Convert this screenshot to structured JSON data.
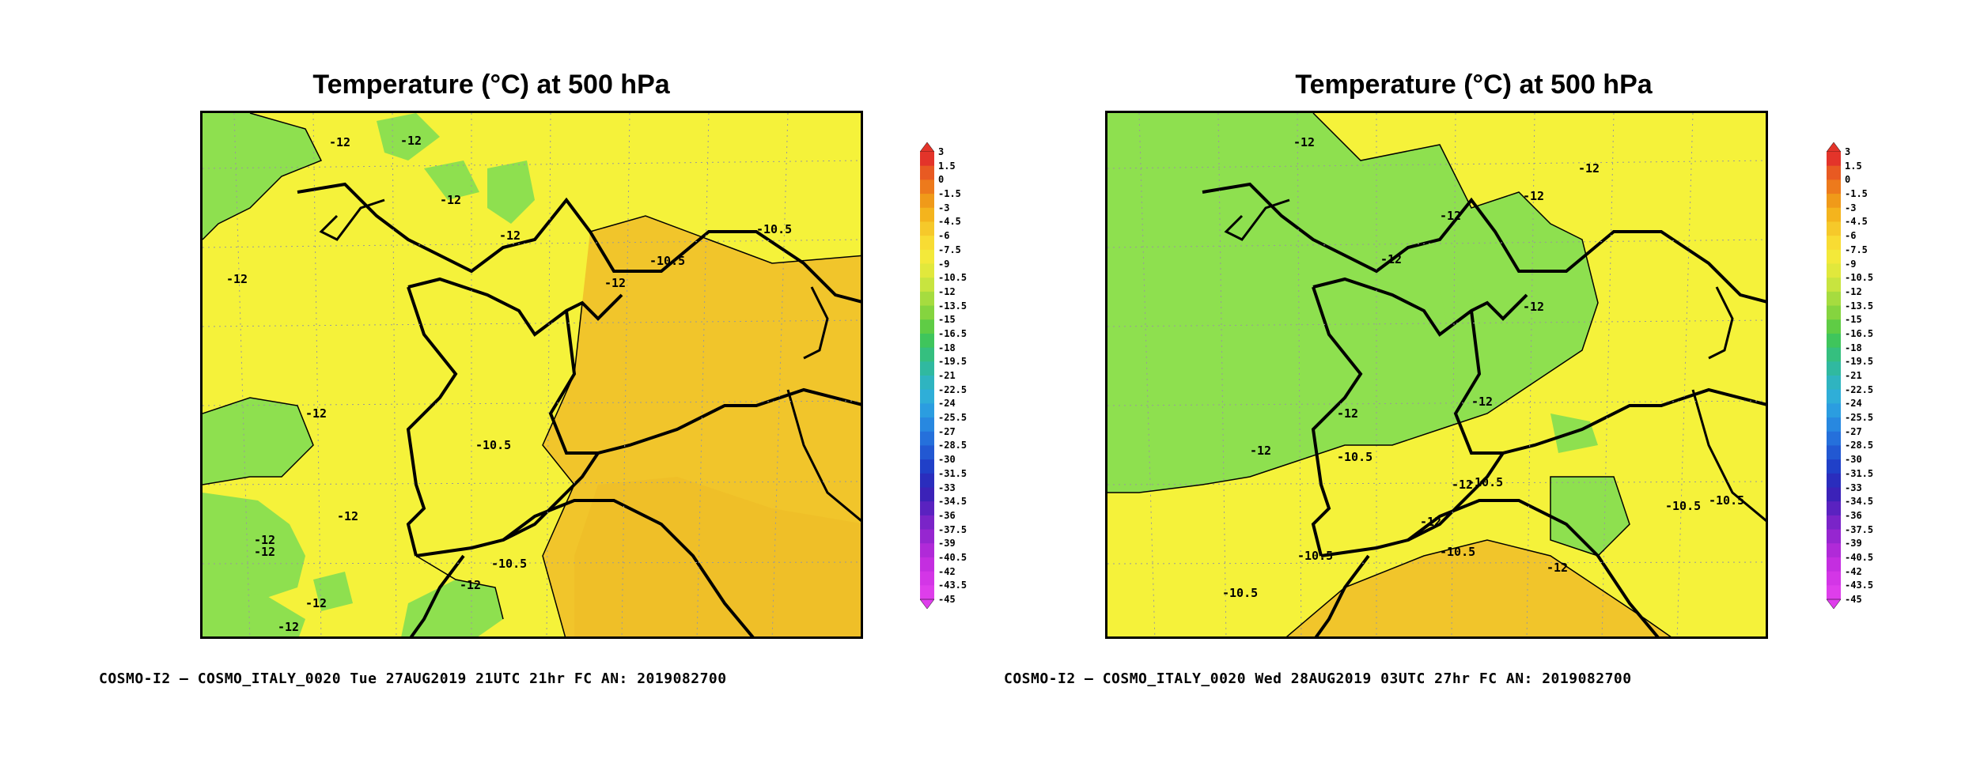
{
  "panels": [
    {
      "title": "Temperature (°C) at 500 hPa",
      "footer": "COSMO-I2 – COSMO_ITALY_0020 Tue 27AUG2019 21UTC 21hr FC AN: 2019082700",
      "contour_labels": [
        "-12",
        "-12",
        "-12",
        "-12",
        "-10.5",
        "-10.5",
        "-12",
        "-12",
        "-10.5",
        "-12",
        "-12",
        "-12",
        "-12",
        "-12",
        "-10.5",
        "-12",
        "-12"
      ]
    },
    {
      "title": "Temperature (°C) at 500 hPa",
      "footer": "COSMO-I2 – COSMO_ITALY_0020 Wed 28AUG2019 03UTC 27hr FC AN: 2019082700",
      "contour_labels": [
        "-12",
        "-12",
        "-12",
        "-12",
        "-12",
        "-12",
        "-12",
        "-12",
        "-12",
        "-10.5",
        "-12",
        "-10.5",
        "-10.5",
        "-10.5",
        "-12",
        "-10.5",
        "-10.5",
        "-12",
        "-10.5"
      ]
    }
  ],
  "colorbar": {
    "labels": [
      "3",
      "1.5",
      "0",
      "-1.5",
      "-3",
      "-4.5",
      "-6",
      "-7.5",
      "-9",
      "-10.5",
      "-12",
      "-13.5",
      "-15",
      "-16.5",
      "-18",
      "-19.5",
      "-21",
      "-22.5",
      "-24",
      "-25.5",
      "-27",
      "-28.5",
      "-30",
      "-31.5",
      "-33",
      "-34.5",
      "-36",
      "-37.5",
      "-39",
      "-40.5",
      "-42",
      "-43.5",
      "-45"
    ],
    "colors": [
      "#e3342a",
      "#e85a22",
      "#ed7a1c",
      "#f09a19",
      "#f4b41d",
      "#f6c92a",
      "#f8dc33",
      "#f3e93a",
      "#e1e83c",
      "#c8e43f",
      "#a6dc3f",
      "#85d43f",
      "#5fcc45",
      "#3fc55c",
      "#35bf7f",
      "#30b9a0",
      "#2fb4c0",
      "#2faed8",
      "#2b9de0",
      "#2888e0",
      "#2570db",
      "#2258d2",
      "#2040c8",
      "#2a2dbd",
      "#3b22b8",
      "#5a22c0",
      "#7a24c8",
      "#9626d0",
      "#b02ad8",
      "#c42ee0",
      "#d336e6",
      "#de3eeb"
    ]
  }
}
